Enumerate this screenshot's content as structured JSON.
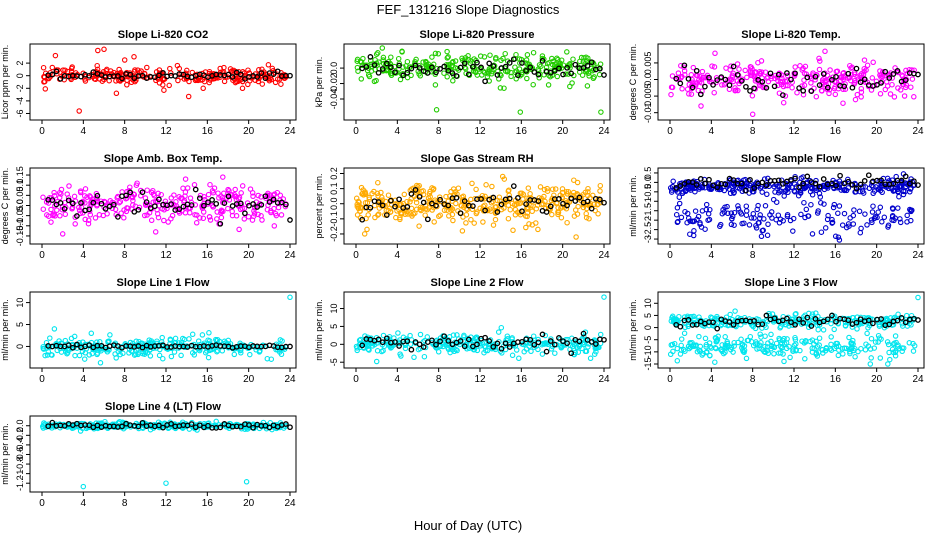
{
  "figure": {
    "title": "FEF_131216  Slope Diagnostics",
    "xlabel": "Hour of Day (UTC)"
  },
  "chart_data": [
    {
      "type": "scatter",
      "title": "Slope Li-820 CO2",
      "ylabel": "Licor ppm per min.",
      "color": "#ff0000",
      "xlim": [
        0,
        24
      ],
      "ylim": [
        -6.4,
        4.4
      ],
      "yticks": [
        -6,
        -4,
        -2,
        0,
        2
      ],
      "xticks": [
        0,
        4,
        8,
        12,
        16,
        20,
        24
      ],
      "band": {
        "center": 0,
        "sd": 0.6,
        "density": 260
      },
      "outliers": [
        [
          1.3,
          3.2
        ],
        [
          1.0,
          1.3
        ],
        [
          5.4,
          4.0
        ],
        [
          6.0,
          4.2
        ],
        [
          8.0,
          2.5
        ],
        [
          8.9,
          3.0
        ],
        [
          11.8,
          -2.3
        ],
        [
          13.1,
          1.6
        ],
        [
          14.2,
          -3.3
        ],
        [
          15.6,
          -2.0
        ],
        [
          3.6,
          -5.6
        ],
        [
          7.2,
          -2.8
        ],
        [
          19.4,
          -2.0
        ]
      ],
      "overlay": {
        "center": 0,
        "sd": 0.25
      }
    },
    {
      "type": "scatter",
      "title": "Slope Li-820 Pressure",
      "ylabel": "kPa per min.",
      "color": "#22cc00",
      "xlim": [
        0,
        24
      ],
      "ylim": [
        -0.062,
        0.026
      ],
      "yticks": [
        -0.04,
        -0.02,
        0.0
      ],
      "xticks": [
        0,
        4,
        8,
        12,
        16,
        20,
        24
      ],
      "band": {
        "center": 0,
        "sd": 0.009,
        "density": 300
      },
      "outliers": [
        [
          2.0,
          0.018
        ],
        [
          7.8,
          -0.054
        ],
        [
          15.9,
          -0.057
        ],
        [
          20.4,
          0.021
        ],
        [
          23.7,
          -0.057
        ]
      ],
      "overlay": {
        "center": 0,
        "sd": 0.006
      }
    },
    {
      "type": "scatter",
      "title": "Slope Li-820 Temp.",
      "ylabel": "degrees C per min.",
      "color": "#ff00ff",
      "xlim": [
        0,
        24
      ],
      "ylim": [
        -0.011,
        0.0095
      ],
      "yticks": [
        -0.01,
        -0.005,
        0.0,
        0.005
      ],
      "xticks": [
        0,
        4,
        8,
        12,
        16,
        20,
        24
      ],
      "band": {
        "center": 0,
        "sd": 0.0025,
        "density": 300
      },
      "outliers": [
        [
          8.0,
          -0.0105
        ],
        [
          15.0,
          0.0085
        ],
        [
          3.0,
          -0.008
        ],
        [
          11.0,
          -0.007
        ]
      ],
      "overlay": {
        "center": 0,
        "sd": 0.0018
      }
    },
    {
      "type": "scatter",
      "title": "Slope Amb. Box Temp.",
      "ylabel": "degrees C per min.",
      "color": "#ff00ff",
      "xlim": [
        0,
        24
      ],
      "ylim": [
        -0.17,
        0.165
      ],
      "yticks": [
        -0.15,
        -0.1,
        -0.05,
        0.0,
        0.05,
        0.1,
        0.15
      ],
      "xticks": [
        0,
        4,
        8,
        12,
        16,
        20,
        24
      ],
      "band": {
        "center": 0,
        "sd": 0.045,
        "density": 300
      },
      "outliers": [
        [
          2.0,
          -0.14
        ],
        [
          8.5,
          0.09
        ],
        [
          9.2,
          0.11
        ],
        [
          13.9,
          0.13
        ],
        [
          17.5,
          0.14
        ],
        [
          11.0,
          -0.13
        ]
      ],
      "overlay": {
        "center": 0,
        "sd": 0.03
      }
    },
    {
      "type": "scatter",
      "title": "Slope Gas Stream RH",
      "ylabel": "percent per min.",
      "color": "#ffaa00",
      "xlim": [
        0,
        24
      ],
      "ylim": [
        -0.24,
        0.21
      ],
      "yticks": [
        -0.2,
        -0.1,
        0.0,
        0.1,
        0.2
      ],
      "xticks": [
        0,
        4,
        8,
        12,
        16,
        20,
        24
      ],
      "band": {
        "center": 0,
        "sd": 0.06,
        "density": 380
      },
      "outliers": [
        [
          10.3,
          -0.18
        ],
        [
          14.2,
          0.18
        ],
        [
          17.6,
          -0.17
        ],
        [
          21.3,
          -0.22
        ]
      ],
      "overlay": {
        "center": 0,
        "sd": 0.04
      }
    },
    {
      "type": "scatter",
      "title": "Slope Sample Flow",
      "ylabel": "ml/min per min.",
      "color": "#0000cc",
      "xlim": [
        0,
        24
      ],
      "ylim": [
        -3.05,
        0.55
      ],
      "yticks": [
        -3.0,
        -2.5,
        -2.0,
        -1.5,
        -1.0,
        -0.5,
        0.0,
        0.5
      ],
      "xticks": [
        0,
        4,
        8,
        12,
        16,
        20,
        24
      ],
      "band": {
        "center": -0.25,
        "sd": 0.22,
        "density": 300
      },
      "band2": {
        "center": -1.9,
        "sd": 0.45,
        "density": 160
      },
      "outliers": [
        [
          16.3,
          -2.9
        ],
        [
          22.6,
          0.45
        ]
      ],
      "overlay": {
        "center": 0,
        "sd": 0.18
      }
    },
    {
      "type": "scatter",
      "title": "Slope Line 1 Flow",
      "ylabel": "ml/min per min.",
      "color": "#00e5ee",
      "xlim": [
        0,
        24
      ],
      "ylim": [
        -4,
        11.5
      ],
      "yticks": [
        -5,
        0,
        5,
        10
      ],
      "xticks": [
        0,
        4,
        8,
        12,
        16,
        20,
        24
      ],
      "band": {
        "center": 0,
        "sd": 1.1,
        "density": 300
      },
      "outliers": [
        [
          24.0,
          11.2
        ],
        [
          1.2,
          4.0
        ],
        [
          21.8,
          -2.8
        ]
      ],
      "overlay": {
        "center": 0,
        "sd": 0.2
      }
    },
    {
      "type": "scatter",
      "title": "Slope Line 2 Flow",
      "ylabel": "ml/min per min.",
      "color": "#00e5ee",
      "xlim": [
        0,
        24
      ],
      "ylim": [
        -5.5,
        13.5
      ],
      "yticks": [
        -5,
        0,
        5,
        10
      ],
      "xticks": [
        0,
        4,
        8,
        12,
        16,
        20,
        24
      ],
      "band": {
        "center": 0,
        "sd": 1.3,
        "density": 300
      },
      "outliers": [
        [
          24.0,
          13.2
        ],
        [
          2.0,
          -4.8
        ],
        [
          22.7,
          -3.9
        ]
      ],
      "overlay": {
        "center": 0.5,
        "sd": 1.0
      }
    },
    {
      "type": "scatter",
      "title": "Slope Line 3 Flow",
      "ylabel": "ml/min per min.",
      "color": "#00e5ee",
      "xlim": [
        0,
        24
      ],
      "ylim": [
        -15,
        13
      ],
      "yticks": [
        -15,
        -10,
        -5,
        0,
        5,
        10
      ],
      "xticks": [
        0,
        4,
        8,
        12,
        16,
        20,
        24
      ],
      "band": {
        "center": 2.5,
        "sd": 1.4,
        "density": 260
      },
      "band2": {
        "center": -8,
        "sd": 2.5,
        "density": 240
      },
      "outliers": [
        [
          24.0,
          12.4
        ],
        [
          6.3,
          6.8
        ]
      ],
      "overlay": {
        "center": 2.5,
        "sd": 1.0
      }
    },
    {
      "type": "scatter",
      "title": "Slope Line 4 (LT) Flow",
      "ylabel": "ml/min per min.",
      "color": "#00e5ee",
      "xlim": [
        0,
        24
      ],
      "ylim": [
        -1.3,
        0.12
      ],
      "yticks": [
        -1.2,
        -1.0,
        -0.8,
        -0.6,
        -0.4,
        -0.2,
        0.0
      ],
      "xticks": [
        0,
        4,
        8,
        12,
        16,
        20,
        24
      ],
      "band": {
        "center": 0,
        "sd": 0.035,
        "density": 300
      },
      "outliers": [
        [
          4.0,
          -1.27
        ],
        [
          12.0,
          -1.2
        ],
        [
          19.8,
          -1.17
        ]
      ],
      "overlay": {
        "center": 0,
        "sd": 0.025
      }
    }
  ]
}
